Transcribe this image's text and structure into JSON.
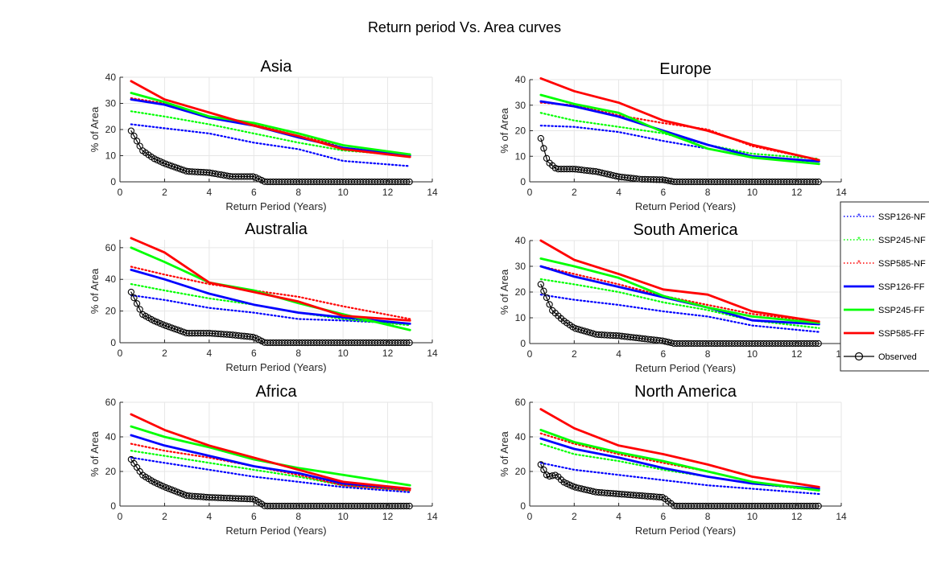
{
  "figure_title": "Return period Vs. Area curves",
  "legend": {
    "placement": "right-outside",
    "entries": [
      {
        "label": "SSP126-NF",
        "color": "#0000ff",
        "style": "dotted"
      },
      {
        "label": "SSP245-NF",
        "color": "#00ff00",
        "style": "dotted"
      },
      {
        "label": "SSP585-NF",
        "color": "#ff0000",
        "style": "dotted"
      },
      {
        "label": "SSP126-FF",
        "color": "#0000ff",
        "style": "solid"
      },
      {
        "label": "SSP245-FF",
        "color": "#00ff00",
        "style": "solid"
      },
      {
        "label": "SSP585-FF",
        "color": "#ff0000",
        "style": "solid"
      },
      {
        "label": "Observed",
        "color": "#000000",
        "style": "circles"
      }
    ]
  },
  "chart_data": [
    {
      "type": "line",
      "title": "Asia",
      "xlabel": "Return Period (Years)",
      "ylabel": "% of Area",
      "xlim": [
        0,
        14
      ],
      "ylim": [
        0,
        40
      ],
      "xticks": [
        0,
        2,
        4,
        6,
        8,
        10,
        12,
        14
      ],
      "yticks": [
        0,
        10,
        20,
        30,
        40
      ],
      "grid": true,
      "series": [
        {
          "name": "SSP126-NF",
          "x": [
            0.5,
            2,
            4,
            6,
            8,
            10,
            13
          ],
          "y": [
            22,
            20.5,
            18.5,
            15,
            12.5,
            8,
            6
          ]
        },
        {
          "name": "SSP245-NF",
          "x": [
            0.5,
            2,
            4,
            6,
            8,
            10,
            13
          ],
          "y": [
            27,
            25,
            22,
            18.5,
            15,
            12,
            10
          ]
        },
        {
          "name": "SSP585-NF",
          "x": [
            0.5,
            2,
            4,
            6,
            8,
            10,
            13
          ],
          "y": [
            32,
            30,
            25,
            22,
            18.5,
            13,
            10.5
          ]
        },
        {
          "name": "SSP126-FF",
          "x": [
            0.5,
            2,
            4,
            6,
            8,
            10,
            13
          ],
          "y": [
            31.5,
            29.5,
            24.5,
            21.5,
            17,
            13,
            10
          ]
        },
        {
          "name": "SSP245-FF",
          "x": [
            0.5,
            2,
            4,
            6,
            8,
            10,
            13
          ],
          "y": [
            34,
            30.5,
            25,
            22.5,
            18.5,
            14,
            10.5
          ]
        },
        {
          "name": "SSP585-FF",
          "x": [
            0.5,
            2,
            4,
            6,
            8,
            10,
            13
          ],
          "y": [
            38.5,
            31.5,
            26.5,
            21.5,
            17.5,
            12.5,
            9.5
          ]
        },
        {
          "name": "Observed",
          "x": [
            0.5,
            1,
            1.5,
            2,
            3,
            4,
            5,
            6,
            6.5,
            7,
            8,
            10,
            13
          ],
          "y": [
            19.5,
            12,
            9,
            7,
            4,
            3.5,
            2,
            2,
            0,
            0,
            0,
            0,
            0
          ]
        }
      ]
    },
    {
      "type": "line",
      "title": "Europe",
      "xlabel": "Return Period (Years)",
      "ylabel": "% of Area",
      "xlim": [
        0,
        14
      ],
      "ylim": [
        0,
        40
      ],
      "xticks": [
        0,
        2,
        4,
        6,
        8,
        10,
        12,
        14
      ],
      "yticks": [
        0,
        10,
        20,
        30,
        40
      ],
      "grid": true,
      "series": [
        {
          "name": "SSP126-NF",
          "x": [
            0.5,
            2,
            4,
            6,
            8,
            10,
            13
          ],
          "y": [
            22,
            21.5,
            19.5,
            16,
            13,
            9.5,
            8
          ]
        },
        {
          "name": "SSP245-NF",
          "x": [
            0.5,
            2,
            4,
            6,
            8,
            10,
            13
          ],
          "y": [
            27,
            24,
            21.5,
            19,
            14.5,
            11,
            9
          ]
        },
        {
          "name": "SSP585-NF",
          "x": [
            0.5,
            2,
            4,
            6,
            8,
            10,
            13
          ],
          "y": [
            31,
            30,
            26,
            23,
            20.5,
            14,
            8.5
          ]
        },
        {
          "name": "SSP126-FF",
          "x": [
            0.5,
            2,
            4,
            6,
            8,
            10,
            13
          ],
          "y": [
            31.5,
            29.5,
            25.5,
            20,
            14.5,
            10,
            8
          ]
        },
        {
          "name": "SSP245-FF",
          "x": [
            0.5,
            2,
            4,
            6,
            8,
            10,
            13
          ],
          "y": [
            34,
            30.5,
            27,
            19.5,
            13,
            9.5,
            7
          ]
        },
        {
          "name": "SSP585-FF",
          "x": [
            0.5,
            2,
            4,
            6,
            8,
            10,
            13
          ],
          "y": [
            40.5,
            35.5,
            31,
            24,
            20,
            14.5,
            8.5
          ]
        },
        {
          "name": "Observed",
          "x": [
            0.5,
            0.8,
            1.2,
            2,
            3,
            4,
            5,
            6,
            6.5,
            8,
            10,
            13
          ],
          "y": [
            17,
            8,
            5,
            5,
            4,
            2,
            1,
            0.8,
            0,
            0,
            0,
            0
          ]
        }
      ]
    },
    {
      "type": "line",
      "title": "Australia",
      "xlabel": "Return Period (Years)",
      "ylabel": "% of Area",
      "xlim": [
        0,
        14
      ],
      "ylim": [
        0,
        65
      ],
      "xticks": [
        0,
        2,
        4,
        6,
        8,
        10,
        12,
        14
      ],
      "yticks": [
        0,
        20,
        40,
        60
      ],
      "grid": true,
      "series": [
        {
          "name": "SSP126-NF",
          "x": [
            0.5,
            2,
            4,
            6,
            8,
            10,
            13
          ],
          "y": [
            30,
            27,
            22,
            19,
            15,
            14,
            12
          ]
        },
        {
          "name": "SSP245-NF",
          "x": [
            0.5,
            2,
            4,
            6,
            8,
            10,
            13
          ],
          "y": [
            37,
            33,
            28,
            24,
            19,
            15,
            11
          ]
        },
        {
          "name": "SSP585-NF",
          "x": [
            0.5,
            2,
            4,
            6,
            8,
            10,
            13
          ],
          "y": [
            48,
            43,
            37,
            33,
            29,
            23,
            15
          ]
        },
        {
          "name": "SSP126-FF",
          "x": [
            0.5,
            2,
            4,
            6,
            8,
            10,
            13
          ],
          "y": [
            46,
            40,
            31,
            24,
            19,
            16,
            12
          ]
        },
        {
          "name": "SSP245-FF",
          "x": [
            0.5,
            2,
            4,
            6,
            8,
            10,
            13
          ],
          "y": [
            60,
            51,
            38,
            33,
            25,
            18,
            8
          ]
        },
        {
          "name": "SSP585-FF",
          "x": [
            0.5,
            2,
            4,
            6,
            8,
            10,
            13
          ],
          "y": [
            66,
            57,
            38,
            32,
            26,
            17,
            14
          ]
        },
        {
          "name": "Observed",
          "x": [
            0.5,
            1,
            1.5,
            2,
            3,
            4,
            5,
            6,
            6.5,
            8,
            10,
            13
          ],
          "y": [
            32,
            18,
            14,
            11,
            6,
            6,
            5,
            3.5,
            0,
            0,
            0,
            0
          ]
        }
      ]
    },
    {
      "type": "line",
      "title": "South America",
      "xlabel": "Return Period (Years)",
      "ylabel": "% of Area",
      "xlim": [
        0,
        14
      ],
      "ylim": [
        0,
        40
      ],
      "xticks": [
        0,
        2,
        4,
        6,
        8,
        10,
        12,
        14
      ],
      "yticks": [
        0,
        10,
        20,
        30,
        40
      ],
      "grid": true,
      "series": [
        {
          "name": "SSP126-NF",
          "x": [
            0.5,
            2,
            4,
            6,
            8,
            10,
            13
          ],
          "y": [
            19,
            17,
            15,
            12.5,
            10.5,
            7,
            4.5
          ]
        },
        {
          "name": "SSP245-NF",
          "x": [
            0.5,
            2,
            4,
            6,
            8,
            10,
            13
          ],
          "y": [
            25,
            23,
            20,
            16,
            13,
            9,
            6
          ]
        },
        {
          "name": "SSP585-NF",
          "x": [
            0.5,
            2,
            4,
            6,
            8,
            10,
            13
          ],
          "y": [
            30,
            27,
            23,
            18.5,
            15,
            11.5,
            8.5
          ]
        },
        {
          "name": "SSP126-FF",
          "x": [
            0.5,
            2,
            4,
            6,
            8,
            10,
            13
          ],
          "y": [
            30,
            26,
            22,
            18,
            14,
            9,
            7.5
          ]
        },
        {
          "name": "SSP245-FF",
          "x": [
            0.5,
            2,
            4,
            6,
            8,
            10,
            13
          ],
          "y": [
            33,
            30,
            25.5,
            18.5,
            14,
            10.5,
            8
          ]
        },
        {
          "name": "SSP585-FF",
          "x": [
            0.5,
            2,
            4,
            6,
            8,
            10,
            13
          ],
          "y": [
            40,
            32.5,
            27,
            21,
            19,
            12.5,
            8.5
          ]
        },
        {
          "name": "Observed",
          "x": [
            0.5,
            1,
            1.5,
            2,
            3,
            4,
            5,
            6,
            6.5,
            8,
            10,
            13
          ],
          "y": [
            23,
            13,
            9,
            6,
            3.5,
            3,
            2,
            1,
            0,
            0,
            0,
            0
          ]
        }
      ]
    },
    {
      "type": "line",
      "title": "Africa",
      "xlabel": "Return Period (Years)",
      "ylabel": "% of Area",
      "xlim": [
        0,
        14
      ],
      "ylim": [
        0,
        60
      ],
      "xticks": [
        0,
        2,
        4,
        6,
        8,
        10,
        12,
        14
      ],
      "yticks": [
        0,
        20,
        40,
        60
      ],
      "grid": true,
      "series": [
        {
          "name": "SSP126-NF",
          "x": [
            0.5,
            2,
            4,
            6,
            8,
            10,
            13
          ],
          "y": [
            28,
            25,
            21,
            17,
            14,
            11,
            8
          ]
        },
        {
          "name": "SSP245-NF",
          "x": [
            0.5,
            2,
            4,
            6,
            8,
            10,
            13
          ],
          "y": [
            32,
            29,
            25,
            21,
            17,
            12,
            9
          ]
        },
        {
          "name": "SSP585-NF",
          "x": [
            0.5,
            2,
            4,
            6,
            8,
            10,
            13
          ],
          "y": [
            36,
            32,
            28,
            23,
            18,
            12,
            9
          ]
        },
        {
          "name": "SSP126-FF",
          "x": [
            0.5,
            2,
            4,
            6,
            8,
            10,
            13
          ],
          "y": [
            41,
            35,
            29,
            23,
            19,
            13,
            10
          ]
        },
        {
          "name": "SSP245-FF",
          "x": [
            0.5,
            2,
            4,
            6,
            8,
            10,
            13
          ],
          "y": [
            46,
            40,
            34,
            27,
            22,
            18,
            12
          ]
        },
        {
          "name": "SSP585-FF",
          "x": [
            0.5,
            2,
            4,
            6,
            8,
            10,
            13
          ],
          "y": [
            53,
            44,
            35,
            28,
            21,
            14,
            10
          ]
        },
        {
          "name": "Observed",
          "x": [
            0.5,
            1,
            1.5,
            2,
            3,
            4,
            5,
            6,
            6.5,
            8,
            10,
            13
          ],
          "y": [
            27,
            18,
            14,
            11,
            6,
            5,
            4.5,
            4,
            0,
            0,
            0,
            0
          ]
        }
      ]
    },
    {
      "type": "line",
      "title": "North America",
      "xlabel": "Return Period (Years)",
      "ylabel": "% of Area",
      "xlim": [
        0,
        14
      ],
      "ylim": [
        0,
        60
      ],
      "xticks": [
        0,
        2,
        4,
        6,
        8,
        10,
        12,
        14
      ],
      "yticks": [
        0,
        20,
        40,
        60
      ],
      "grid": true,
      "series": [
        {
          "name": "SSP126-NF",
          "x": [
            0.5,
            2,
            4,
            6,
            8,
            10,
            13
          ],
          "y": [
            25,
            21,
            18,
            15,
            12,
            10,
            7
          ]
        },
        {
          "name": "SSP245-NF",
          "x": [
            0.5,
            2,
            4,
            6,
            8,
            10,
            13
          ],
          "y": [
            36,
            30,
            26,
            21,
            17,
            13,
            9
          ]
        },
        {
          "name": "SSP585-NF",
          "x": [
            0.5,
            2,
            4,
            6,
            8,
            10,
            13
          ],
          "y": [
            42,
            36,
            30,
            25,
            20,
            14,
            9
          ]
        },
        {
          "name": "SSP126-FF",
          "x": [
            0.5,
            2,
            4,
            6,
            8,
            10,
            13
          ],
          "y": [
            39,
            33,
            28,
            22,
            17,
            13,
            10
          ]
        },
        {
          "name": "SSP245-FF",
          "x": [
            0.5,
            2,
            4,
            6,
            8,
            10,
            13
          ],
          "y": [
            44,
            37,
            31,
            26,
            20,
            14,
            9
          ]
        },
        {
          "name": "SSP585-FF",
          "x": [
            0.5,
            2,
            4,
            6,
            8,
            10,
            13
          ],
          "y": [
            56,
            45,
            35,
            30,
            24,
            17,
            11
          ]
        },
        {
          "name": "Observed",
          "x": [
            0.5,
            0.8,
            1.2,
            1.5,
            2,
            3,
            4,
            5,
            6,
            6.5,
            8,
            10,
            13
          ],
          "y": [
            24,
            17,
            18,
            14,
            11,
            8,
            7,
            6,
            5,
            0,
            0,
            0,
            0
          ]
        }
      ]
    }
  ]
}
